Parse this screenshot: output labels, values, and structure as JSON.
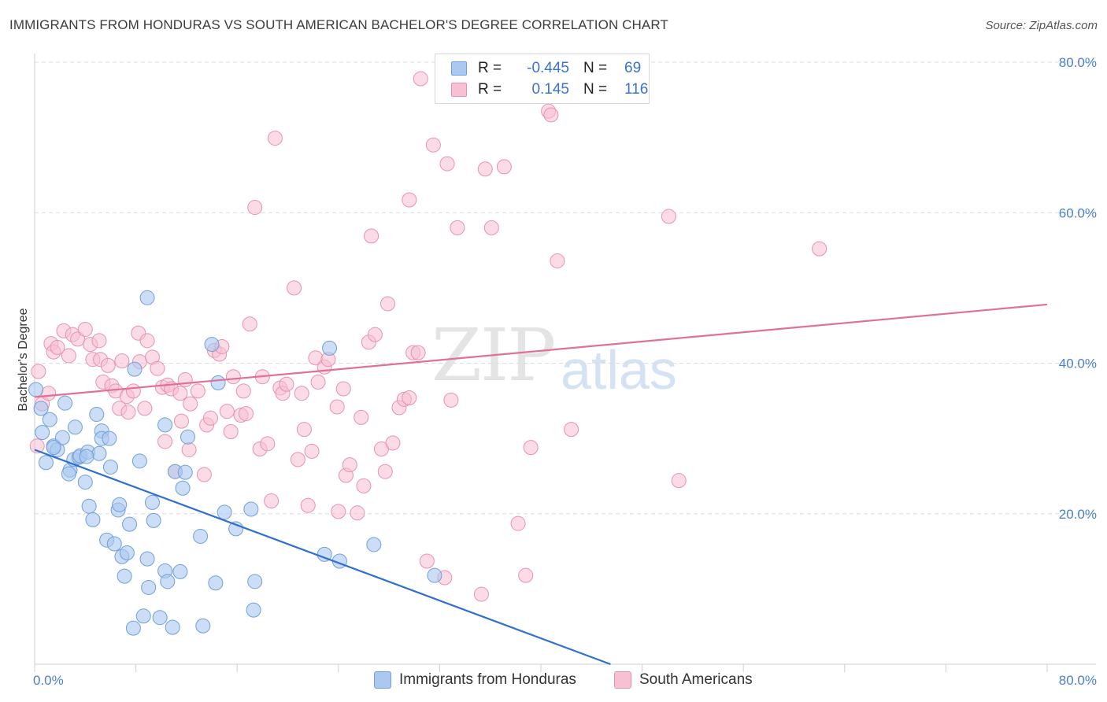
{
  "title": "IMMIGRANTS FROM HONDURAS VS SOUTH AMERICAN BACHELOR'S DEGREE CORRELATION CHART",
  "source": "Source: ZipAtlas.com",
  "watermark": {
    "zip": "ZIP",
    "atlas": "atlas"
  },
  "legend": {
    "rows": [
      {
        "r_label": "R =",
        "r_value": "-0.445",
        "n_label": "N =",
        "n_value": "69",
        "color": "#aac8f0",
        "border": "#6f9fdc"
      },
      {
        "r_label": "R =",
        "r_value": "0.145",
        "n_label": "N =",
        "n_value": "116",
        "color": "#f8c0d2",
        "border": "#e891ae"
      }
    ]
  },
  "bottom_legend": {
    "honduras": "Immigrants from Honduras",
    "south_americans": "South Americans"
  },
  "colors": {
    "blue_fill": "#aac8f0",
    "blue_stroke": "#6f9fdc",
    "blue_line": "#2f6fd0",
    "pink_fill": "#f8c0d2",
    "pink_stroke": "#e891ae",
    "pink_line": "#e0709a",
    "tick_text": "#4a7fd0"
  },
  "chart_data": {
    "type": "scatter",
    "title": "IMMIGRANTS FROM HONDURAS VS SOUTH AMERICAN BACHELOR'S DEGREE CORRELATION CHART",
    "xlabel": "",
    "ylabel": "Bachelor's Degree",
    "xlim": [
      0,
      80
    ],
    "ylim": [
      0,
      80
    ],
    "x_tick_labels": [
      "0.0%",
      "80.0%"
    ],
    "y_tick_labels": [
      "20.0%",
      "40.0%",
      "60.0%",
      "80.0%"
    ],
    "y_ticks": [
      20,
      40,
      60,
      80
    ],
    "grid": "dashed horizontal",
    "legend_position": "top-center",
    "series": [
      {
        "name": "Immigrants from Honduras",
        "trend": {
          "x0": 0,
          "y0": 28.5,
          "x1": 45.5,
          "y1": 0
        },
        "points": [
          [
            0.1,
            36.5
          ],
          [
            0.5,
            34
          ],
          [
            0.6,
            30.8
          ],
          [
            1.2,
            32.5
          ],
          [
            0.9,
            26.8
          ],
          [
            1.5,
            29
          ],
          [
            1.8,
            28.5
          ],
          [
            2.2,
            30.1
          ],
          [
            2.4,
            34.7
          ],
          [
            2.8,
            25.8
          ],
          [
            3.2,
            31.5
          ],
          [
            3.1,
            27.2
          ],
          [
            3.5,
            27.5
          ],
          [
            3.6,
            27.7
          ],
          [
            4,
            24.2
          ],
          [
            4.2,
            28.2
          ],
          [
            4.3,
            21
          ],
          [
            4.6,
            19.2
          ],
          [
            4.9,
            33.2
          ],
          [
            5.1,
            28
          ],
          [
            5.3,
            31
          ],
          [
            5.3,
            30
          ],
          [
            5.7,
            16.5
          ],
          [
            5.9,
            30
          ],
          [
            6,
            26.2
          ],
          [
            6.3,
            16
          ],
          [
            6.6,
            20.5
          ],
          [
            6.7,
            21.2
          ],
          [
            6.9,
            14.3
          ],
          [
            7.1,
            11.7
          ],
          [
            7.3,
            14.8
          ],
          [
            7.5,
            18.6
          ],
          [
            7.8,
            4.8
          ],
          [
            7.9,
            39.2
          ],
          [
            8.3,
            27
          ],
          [
            8.6,
            6.4
          ],
          [
            8.9,
            48.7
          ],
          [
            8.9,
            14
          ],
          [
            9,
            10.2
          ],
          [
            9.3,
            21.5
          ],
          [
            9.4,
            19.1
          ],
          [
            9.9,
            6.2
          ],
          [
            10.3,
            12.4
          ],
          [
            10.3,
            31.8
          ],
          [
            10.5,
            11
          ],
          [
            10.9,
            4.9
          ],
          [
            11.1,
            25.6
          ],
          [
            11.5,
            12.3
          ],
          [
            11.7,
            23.4
          ],
          [
            11.9,
            25.5
          ],
          [
            12.1,
            30.2
          ],
          [
            13.1,
            17
          ],
          [
            13.3,
            5.1
          ],
          [
            14,
            42.5
          ],
          [
            14.3,
            10.8
          ],
          [
            14.5,
            37.4
          ],
          [
            15,
            20.2
          ],
          [
            15.9,
            18
          ],
          [
            17.1,
            20.6
          ],
          [
            17.3,
            7.2
          ],
          [
            17.4,
            11
          ],
          [
            22.9,
            14.6
          ],
          [
            23.3,
            42
          ],
          [
            24.1,
            13.7
          ],
          [
            26.8,
            15.9
          ],
          [
            31.6,
            11.8
          ],
          [
            1.5,
            28.8
          ],
          [
            2.7,
            25.3
          ],
          [
            4.1,
            27.6
          ]
        ]
      },
      {
        "name": "South Americans",
        "trend": {
          "x0": 0,
          "y0": 35.5,
          "x1": 80,
          "y1": 47.8
        },
        "points": [
          [
            0.3,
            38.9
          ],
          [
            0.6,
            34.6
          ],
          [
            0.2,
            29
          ],
          [
            1.1,
            36
          ],
          [
            1.3,
            42.6
          ],
          [
            1.5,
            41.5
          ],
          [
            1.8,
            42.1
          ],
          [
            2.3,
            44.3
          ],
          [
            2.7,
            41
          ],
          [
            3,
            43.8
          ],
          [
            3.4,
            43.2
          ],
          [
            4,
            44.5
          ],
          [
            4.4,
            42.5
          ],
          [
            4.6,
            40.5
          ],
          [
            5.1,
            43
          ],
          [
            5.2,
            40.5
          ],
          [
            5.4,
            37.5
          ],
          [
            5.8,
            39.7
          ],
          [
            6.1,
            37
          ],
          [
            6.4,
            36.3
          ],
          [
            6.7,
            34
          ],
          [
            6.9,
            40.3
          ],
          [
            7.3,
            35.6
          ],
          [
            7.4,
            33.5
          ],
          [
            7.8,
            36.3
          ],
          [
            8.2,
            44
          ],
          [
            8.3,
            40.2
          ],
          [
            8.7,
            34
          ],
          [
            8.9,
            43
          ],
          [
            9.3,
            40.8
          ],
          [
            9.7,
            39.3
          ],
          [
            10.1,
            36.8
          ],
          [
            10.3,
            29.6
          ],
          [
            10.5,
            37.1
          ],
          [
            10.8,
            36.6
          ],
          [
            11.1,
            25.6
          ],
          [
            11.5,
            36
          ],
          [
            11.6,
            32.3
          ],
          [
            11.9,
            37.8
          ],
          [
            12.2,
            28.5
          ],
          [
            12.3,
            34.6
          ],
          [
            12.9,
            36.3
          ],
          [
            13.4,
            25.2
          ],
          [
            13.6,
            31.8
          ],
          [
            13.9,
            32.7
          ],
          [
            14.2,
            41.7
          ],
          [
            14.6,
            41.2
          ],
          [
            14.8,
            42.2
          ],
          [
            15.2,
            33.6
          ],
          [
            15.5,
            30.9
          ],
          [
            15.7,
            38.2
          ],
          [
            16.3,
            33.1
          ],
          [
            16.5,
            36.3
          ],
          [
            16.7,
            33.3
          ],
          [
            17,
            45.2
          ],
          [
            17.4,
            60.7
          ],
          [
            17.8,
            28.6
          ],
          [
            18,
            38.2
          ],
          [
            18.4,
            29.3
          ],
          [
            18.7,
            21.7
          ],
          [
            19,
            69.9
          ],
          [
            19.4,
            36.7
          ],
          [
            19.6,
            36
          ],
          [
            19.9,
            37.2
          ],
          [
            20.5,
            50
          ],
          [
            20.8,
            27.2
          ],
          [
            21.1,
            36
          ],
          [
            21.3,
            31.2
          ],
          [
            21.6,
            21.1
          ],
          [
            21.9,
            28.3
          ],
          [
            22.2,
            40.7
          ],
          [
            22.4,
            37.5
          ],
          [
            22.9,
            39.5
          ],
          [
            23.2,
            40.5
          ],
          [
            23.9,
            34.2
          ],
          [
            24,
            20.3
          ],
          [
            24.4,
            36.6
          ],
          [
            24.6,
            25.1
          ],
          [
            24.9,
            26.5
          ],
          [
            25.5,
            20.1
          ],
          [
            25.8,
            32.8
          ],
          [
            26,
            23.7
          ],
          [
            26.4,
            42.8
          ],
          [
            26.6,
            56.9
          ],
          [
            26.9,
            43.8
          ],
          [
            27.4,
            28.6
          ],
          [
            27.7,
            25.6
          ],
          [
            27.9,
            47.9
          ],
          [
            28.3,
            29.4
          ],
          [
            28.8,
            34.1
          ],
          [
            29.2,
            35.2
          ],
          [
            29.6,
            35.4
          ],
          [
            29.9,
            41.4
          ],
          [
            29.6,
            61.7
          ],
          [
            30.3,
            41.4
          ],
          [
            30.5,
            77.8
          ],
          [
            31,
            13.7
          ],
          [
            31.5,
            69
          ],
          [
            32.4,
            11.5
          ],
          [
            32.6,
            66.5
          ],
          [
            32.9,
            35.1
          ],
          [
            33.4,
            58
          ],
          [
            35.3,
            9.3
          ],
          [
            35.6,
            65.8
          ],
          [
            36.1,
            58
          ],
          [
            37.1,
            66.1
          ],
          [
            38.2,
            18.7
          ],
          [
            38.8,
            11.8
          ],
          [
            39.2,
            28.8
          ],
          [
            40.6,
            73.5
          ],
          [
            40.8,
            73
          ],
          [
            41.3,
            53.6
          ],
          [
            42.4,
            31.2
          ],
          [
            50.1,
            59.5
          ],
          [
            50.9,
            24.4
          ],
          [
            62,
            55.2
          ]
        ]
      }
    ]
  }
}
